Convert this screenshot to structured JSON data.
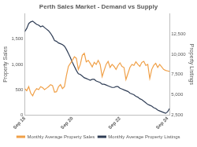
{
  "chart_data": {
    "type": "line",
    "title": "Perth Sales Market - Demand vs Supply",
    "y_label": "Property Sales",
    "y2_label": "Property Listings",
    "categories": [
      "Sep 18",
      null,
      null,
      null,
      null,
      null,
      null,
      null,
      null,
      null,
      null,
      null,
      null,
      null,
      null,
      null,
      null,
      null,
      null,
      null,
      null,
      null,
      null,
      null,
      "Sep 20",
      null,
      null,
      null,
      null,
      null,
      null,
      null,
      null,
      null,
      null,
      null,
      null,
      null,
      null,
      null,
      null,
      null,
      null,
      null,
      null,
      null,
      null,
      null,
      "Sep 22",
      null,
      null,
      null,
      null,
      null,
      null,
      null,
      null,
      null,
      null,
      null,
      null,
      null,
      null,
      null,
      null,
      null,
      null,
      null,
      null,
      null,
      null,
      null,
      "Sep 24",
      null
    ],
    "series": [
      {
        "name": "Monthly Average Property Sales",
        "color": "#f0a048",
        "values": [
          520,
          480,
          560,
          430,
          380,
          470,
          520,
          500,
          560,
          540,
          500,
          530,
          560,
          600,
          580,
          450,
          460,
          560,
          600,
          520,
          560,
          780,
          960,
          1020,
          1080,
          1150,
          1120,
          900,
          1000,
          1180,
          1220,
          1050,
          1080,
          1020,
          950,
          1040,
          1000,
          1080,
          1000,
          760,
          880,
          1000,
          1060,
          940,
          1000,
          960,
          900,
          980,
          1030,
          960,
          940,
          700,
          820,
          940,
          1000,
          980,
          1050,
          1000,
          960,
          1040,
          1060,
          980,
          1000,
          720,
          900,
          980,
          1020,
          940,
          1000,
          950,
          900,
          880,
          870,
          860
        ]
      },
      {
        "name": "Monthly Average Property Listings",
        "color": "#2f3d55",
        "axis": "y2",
        "values": [
          12800,
          13200,
          13800,
          14000,
          14100,
          13900,
          13700,
          13600,
          13400,
          13500,
          13300,
          13100,
          12900,
          12600,
          12200,
          11700,
          11600,
          11400,
          11300,
          11200,
          11000,
          10600,
          10100,
          9600,
          9000,
          8500,
          8000,
          7600,
          7500,
          7300,
          7100,
          7000,
          6900,
          6800,
          6900,
          6900,
          6700,
          6600,
          6500,
          6300,
          6300,
          6200,
          6100,
          6000,
          5900,
          5900,
          6000,
          6000,
          5800,
          5700,
          5600,
          5500,
          5400,
          5200,
          5100,
          5000,
          4800,
          4700,
          4500,
          4400,
          4200,
          4000,
          3800,
          3700,
          3600,
          3400,
          3300,
          3100,
          3000,
          2900,
          2800,
          2700,
          2900,
          3300
        ]
      }
    ],
    "ylim": [
      0,
      2000
    ],
    "yticks": [
      0,
      500,
      {
        "value": 1000,
        "label": "1,000"
      },
      {
        "value": 1500,
        "label": "1,500"
      }
    ],
    "y2lim": [
      2500,
      15000
    ],
    "y2ticks": [
      {
        "value": 2500,
        "label": "2,500"
      },
      {
        "value": 5000,
        "label": "5,000"
      },
      {
        "value": 7500,
        "label": "7,500"
      },
      {
        "value": 10000,
        "label": "10,000"
      },
      {
        "value": 12500,
        "label": "12,500"
      }
    ],
    "grid": false,
    "legend": "bottom"
  }
}
